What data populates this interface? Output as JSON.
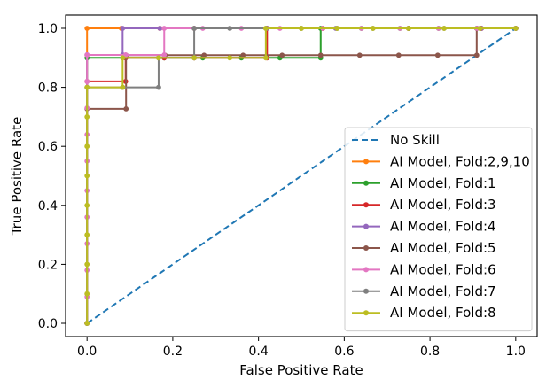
{
  "chart_data": {
    "type": "line",
    "xlabel": "False Positive Rate",
    "ylabel": "True Positive Rate",
    "xlim": [
      -0.05,
      1.05
    ],
    "ylim": [
      -0.045,
      1.045
    ],
    "x_ticks": [
      "0.0",
      "0.2",
      "0.4",
      "0.6",
      "0.8",
      "1.0"
    ],
    "y_ticks": [
      "0.0",
      "0.2",
      "0.4",
      "0.6",
      "0.8",
      "1.0"
    ],
    "grid": false,
    "legend_position": "lower-right",
    "series": [
      {
        "name": "No Skill",
        "color": "#1f77b4",
        "style": "dashed",
        "marker": false,
        "points": [
          [
            0,
            0
          ],
          [
            1,
            1
          ]
        ]
      },
      {
        "name": "AI Model, Fold:2,9,10",
        "color": "#ff7f0e",
        "style": "solid",
        "marker": true,
        "points": [
          [
            0,
            0
          ],
          [
            0,
            1.0
          ],
          [
            0.08,
            1.0
          ],
          [
            0.17,
            1.0
          ],
          [
            0.25,
            1.0
          ],
          [
            0.42,
            1.0
          ],
          [
            0.55,
            1.0
          ],
          [
            0.75,
            1.0
          ],
          [
            0.92,
            1.0
          ],
          [
            1.0,
            1.0
          ]
        ]
      },
      {
        "name": "AI Model, Fold:1",
        "color": "#2ca02c",
        "style": "solid",
        "marker": true,
        "points": [
          [
            0,
            0
          ],
          [
            0,
            0.9
          ],
          [
            0.09,
            0.9
          ],
          [
            0.18,
            0.9
          ],
          [
            0.27,
            0.9
          ],
          [
            0.36,
            0.9
          ],
          [
            0.45,
            0.9
          ],
          [
            0.545,
            0.9
          ],
          [
            0.545,
            1.0
          ],
          [
            0.64,
            1.0
          ],
          [
            0.73,
            1.0
          ],
          [
            0.82,
            1.0
          ],
          [
            0.91,
            1.0
          ],
          [
            1.0,
            1.0
          ]
        ]
      },
      {
        "name": "AI Model, Fold:3",
        "color": "#d62728",
        "style": "solid",
        "marker": true,
        "points": [
          [
            0,
            0
          ],
          [
            0,
            0.82
          ],
          [
            0.09,
            0.82
          ],
          [
            0.09,
            0.9
          ],
          [
            0.18,
            0.9
          ],
          [
            0.25,
            0.9
          ],
          [
            0.42,
            0.9
          ],
          [
            0.42,
            1.0
          ],
          [
            0.55,
            1.0
          ],
          [
            0.75,
            1.0
          ],
          [
            0.92,
            1.0
          ],
          [
            1.0,
            1.0
          ]
        ]
      },
      {
        "name": "AI Model, Fold:4",
        "color": "#9467bd",
        "style": "solid",
        "marker": true,
        "points": [
          [
            0,
            0
          ],
          [
            0,
            0.91
          ],
          [
            0.083,
            0.91
          ],
          [
            0.083,
            1.0
          ],
          [
            0.17,
            1.0
          ],
          [
            0.25,
            1.0
          ],
          [
            0.42,
            1.0
          ],
          [
            0.58,
            1.0
          ],
          [
            0.75,
            1.0
          ],
          [
            0.92,
            1.0
          ],
          [
            1.0,
            1.0
          ]
        ]
      },
      {
        "name": "AI Model, Fold:5",
        "color": "#8c564b",
        "style": "solid",
        "marker": true,
        "points": [
          [
            0,
            0
          ],
          [
            0,
            0.727
          ],
          [
            0.091,
            0.727
          ],
          [
            0.091,
            0.909
          ],
          [
            0.182,
            0.909
          ],
          [
            0.273,
            0.909
          ],
          [
            0.364,
            0.909
          ],
          [
            0.455,
            0.909
          ],
          [
            0.545,
            0.909
          ],
          [
            0.636,
            0.909
          ],
          [
            0.727,
            0.909
          ],
          [
            0.818,
            0.909
          ],
          [
            0.909,
            0.909
          ],
          [
            0.909,
            1.0
          ],
          [
            1.0,
            1.0
          ]
        ]
      },
      {
        "name": "AI Model, Fold:6",
        "color": "#e377c2",
        "style": "solid",
        "marker": true,
        "points": [
          [
            0,
            0
          ],
          [
            0,
            0.09
          ],
          [
            0,
            0.18
          ],
          [
            0,
            0.27
          ],
          [
            0,
            0.36
          ],
          [
            0,
            0.45
          ],
          [
            0,
            0.55
          ],
          [
            0,
            0.64
          ],
          [
            0,
            0.73
          ],
          [
            0,
            0.82
          ],
          [
            0,
            0.91
          ],
          [
            0.09,
            0.91
          ],
          [
            0.18,
            0.91
          ],
          [
            0.18,
            1.0
          ],
          [
            0.27,
            1.0
          ],
          [
            0.36,
            1.0
          ],
          [
            0.45,
            1.0
          ],
          [
            0.55,
            1.0
          ],
          [
            0.64,
            1.0
          ],
          [
            0.73,
            1.0
          ],
          [
            0.82,
            1.0
          ],
          [
            0.91,
            1.0
          ],
          [
            1.0,
            1.0
          ]
        ]
      },
      {
        "name": "AI Model, Fold:7",
        "color": "#7f7f7f",
        "style": "solid",
        "marker": true,
        "points": [
          [
            0,
            0
          ],
          [
            0,
            0.8
          ],
          [
            0.083,
            0.8
          ],
          [
            0.167,
            0.8
          ],
          [
            0.167,
            0.9
          ],
          [
            0.25,
            0.9
          ],
          [
            0.25,
            1.0
          ],
          [
            0.333,
            1.0
          ],
          [
            0.417,
            1.0
          ],
          [
            0.5,
            1.0
          ],
          [
            0.583,
            1.0
          ],
          [
            0.667,
            1.0
          ],
          [
            0.75,
            1.0
          ],
          [
            0.833,
            1.0
          ],
          [
            0.917,
            1.0
          ],
          [
            1.0,
            1.0
          ]
        ]
      },
      {
        "name": "AI Model, Fold:8",
        "color": "#bcbd22",
        "style": "solid",
        "marker": true,
        "points": [
          [
            0,
            0
          ],
          [
            0,
            0.1
          ],
          [
            0,
            0.2
          ],
          [
            0,
            0.3
          ],
          [
            0,
            0.4
          ],
          [
            0,
            0.5
          ],
          [
            0,
            0.6
          ],
          [
            0,
            0.7
          ],
          [
            0,
            0.8
          ],
          [
            0.083,
            0.8
          ],
          [
            0.083,
            0.9
          ],
          [
            0.167,
            0.9
          ],
          [
            0.25,
            0.9
          ],
          [
            0.333,
            0.9
          ],
          [
            0.417,
            0.9
          ],
          [
            0.417,
            1.0
          ],
          [
            0.5,
            1.0
          ],
          [
            0.583,
            1.0
          ],
          [
            0.667,
            1.0
          ],
          [
            0.75,
            1.0
          ],
          [
            0.833,
            1.0
          ],
          [
            0.917,
            1.0
          ],
          [
            1.0,
            1.0
          ]
        ]
      }
    ]
  }
}
